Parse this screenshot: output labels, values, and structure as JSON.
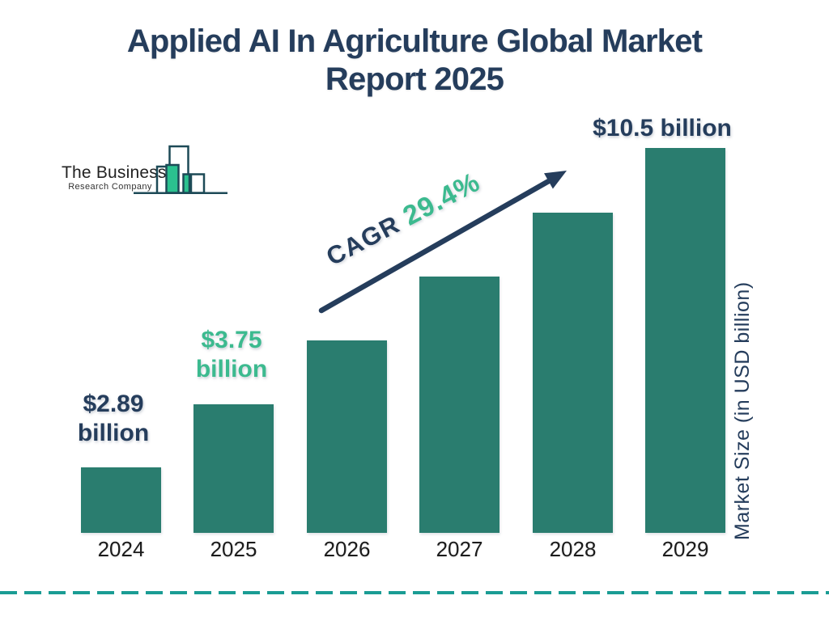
{
  "header": {
    "title_line1": "Applied AI In Agriculture Global Market",
    "title_line2": "Report 2025"
  },
  "logo": {
    "name": "The Business",
    "subname": "Research Company"
  },
  "chart_data": {
    "type": "bar",
    "title": "Applied AI In Agriculture Global Market Report 2025",
    "categories": [
      "2024",
      "2025",
      "2026",
      "2027",
      "2028",
      "2029"
    ],
    "series": [
      {
        "name": "Market Size (in USD billion)",
        "values": [
          2.89,
          3.75,
          null,
          null,
          null,
          10.5
        ]
      }
    ],
    "value_labels": {
      "v2024": "$2.89\nbillion",
      "v2025": "$3.75\nbillion",
      "v2029": "$10.5 billion"
    },
    "cagr": {
      "prefix": "CAGR",
      "value": "29.4%"
    },
    "xlabel": "",
    "ylabel": "Market Size (in USD billion)",
    "grid": false,
    "legend": false,
    "bar_heights_frac": [
      0.17,
      0.334,
      0.499,
      0.665,
      0.831,
      1.0
    ],
    "colors": {
      "bar": "#2A7D6F",
      "navy_text": "#253D5C",
      "green_accent": "#3CBA8F",
      "divider_teal": "#1A9C94",
      "year_text": "#1B1B1B",
      "logo_outline": "#1D4A57",
      "logo_green": "#2BC18F"
    }
  }
}
